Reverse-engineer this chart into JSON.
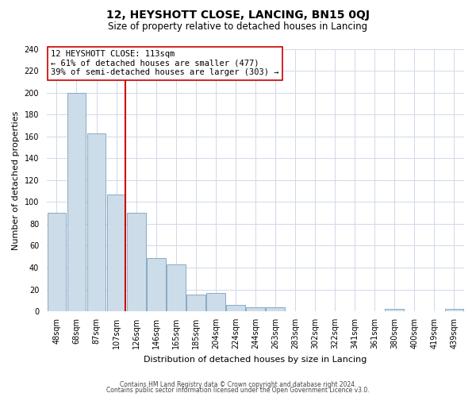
{
  "title": "12, HEYSHOTT CLOSE, LANCING, BN15 0QJ",
  "subtitle": "Size of property relative to detached houses in Lancing",
  "xlabel": "Distribution of detached houses by size in Lancing",
  "ylabel": "Number of detached properties",
  "bar_labels": [
    "48sqm",
    "68sqm",
    "87sqm",
    "107sqm",
    "126sqm",
    "146sqm",
    "165sqm",
    "185sqm",
    "204sqm",
    "224sqm",
    "244sqm",
    "263sqm",
    "283sqm",
    "302sqm",
    "322sqm",
    "341sqm",
    "361sqm",
    "380sqm",
    "400sqm",
    "419sqm",
    "439sqm"
  ],
  "bar_values": [
    90,
    200,
    163,
    107,
    90,
    49,
    43,
    15,
    17,
    6,
    4,
    4,
    0,
    0,
    0,
    0,
    0,
    2,
    0,
    0,
    2
  ],
  "bar_color": "#ccdce8",
  "bar_edge_color": "#88aac8",
  "vline_color": "#cc0000",
  "annotation_title": "12 HEYSHOTT CLOSE: 113sqm",
  "annotation_line1": "← 61% of detached houses are smaller (477)",
  "annotation_line2": "39% of semi-detached houses are larger (303) →",
  "annotation_box_color": "#ffffff",
  "annotation_box_edge_color": "#cc0000",
  "ylim": [
    0,
    240
  ],
  "yticks": [
    0,
    20,
    40,
    60,
    80,
    100,
    120,
    140,
    160,
    180,
    200,
    220,
    240
  ],
  "footer1": "Contains HM Land Registry data © Crown copyright and database right 2024.",
  "footer2": "Contains public sector information licensed under the Open Government Licence v3.0.",
  "grid_color": "#d0d8e8",
  "title_fontsize": 10,
  "subtitle_fontsize": 8.5,
  "annotation_fontsize": 7.5,
  "axis_label_fontsize": 8,
  "tick_fontsize": 7,
  "footer_fontsize": 5.5
}
